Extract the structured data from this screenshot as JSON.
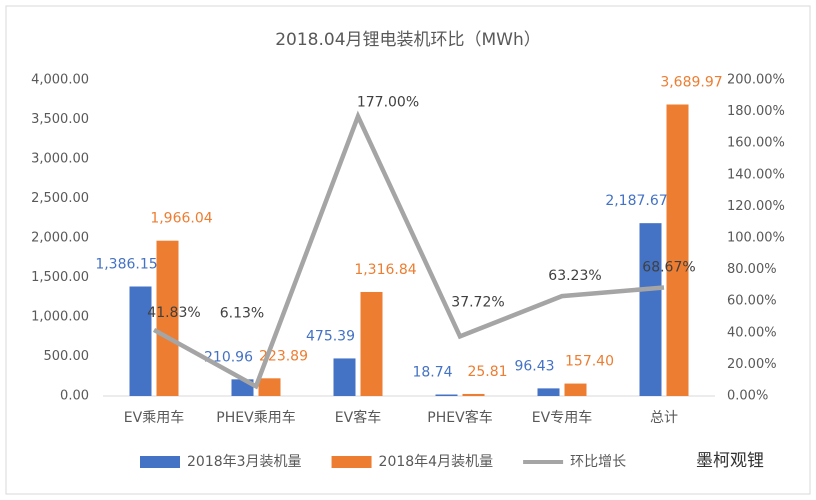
{
  "chart_data": {
    "type": "bar",
    "title": "2018.04月锂电装机环比（MWh）",
    "categories": [
      "EV乘用车",
      "PHEV乘用车",
      "EV客车",
      "PHEV客车",
      "EV专用车",
      "总计"
    ],
    "series": [
      {
        "name": "2018年3月装机量",
        "color": "#4472c4",
        "type": "bar",
        "values": [
          1386.15,
          210.96,
          475.39,
          18.74,
          96.43,
          2187.67
        ],
        "value_labels": [
          "1,386.15",
          "210.96",
          "475.39",
          "18.74",
          "96.43",
          "2,187.67"
        ]
      },
      {
        "name": "2018年4月装机量",
        "color": "#ed7d31",
        "type": "bar",
        "values": [
          1966.04,
          223.89,
          1316.84,
          25.81,
          157.4,
          3689.97
        ],
        "value_labels": [
          "1,966.04",
          "223.89",
          "1,316.84",
          "25.81",
          "157.40",
          "3,689.97"
        ]
      },
      {
        "name": "环比增长",
        "color": "#a5a5a5",
        "type": "line",
        "axis": "y2",
        "values": [
          41.83,
          6.13,
          177.0,
          37.72,
          63.23,
          68.67
        ],
        "value_labels": [
          "41.83%",
          "6.13%",
          "177.00%",
          "37.72%",
          "63.23%",
          "68.67%"
        ]
      }
    ],
    "ylim": [
      0,
      4000
    ],
    "yticks": [
      {
        "value": 0,
        "label": "0.00"
      },
      {
        "value": 500,
        "label": "500.00"
      },
      {
        "value": 1000,
        "label": "1,000.00"
      },
      {
        "value": 1500,
        "label": "1,500.00"
      },
      {
        "value": 2000,
        "label": "2,000.00"
      },
      {
        "value": 2500,
        "label": "2,500.00"
      },
      {
        "value": 3000,
        "label": "3,000.00"
      },
      {
        "value": 3500,
        "label": "3,500.00"
      },
      {
        "value": 4000,
        "label": "4,000.00"
      }
    ],
    "y2lim": [
      0,
      200
    ],
    "y2ticks": [
      {
        "value": 0,
        "label": "0.00%"
      },
      {
        "value": 20,
        "label": "20.00%"
      },
      {
        "value": 40,
        "label": "40.00%"
      },
      {
        "value": 60,
        "label": "60.00%"
      },
      {
        "value": 80,
        "label": "80.00%"
      },
      {
        "value": 100,
        "label": "100.00%"
      },
      {
        "value": 120,
        "label": "120.00%"
      },
      {
        "value": 140,
        "label": "140.00%"
      },
      {
        "value": 160,
        "label": "160.00%"
      },
      {
        "value": 180,
        "label": "180.00%"
      },
      {
        "value": 200,
        "label": "200.00%"
      }
    ],
    "grid": false,
    "legend": "bottom",
    "watermark": "墨柯观锂"
  }
}
